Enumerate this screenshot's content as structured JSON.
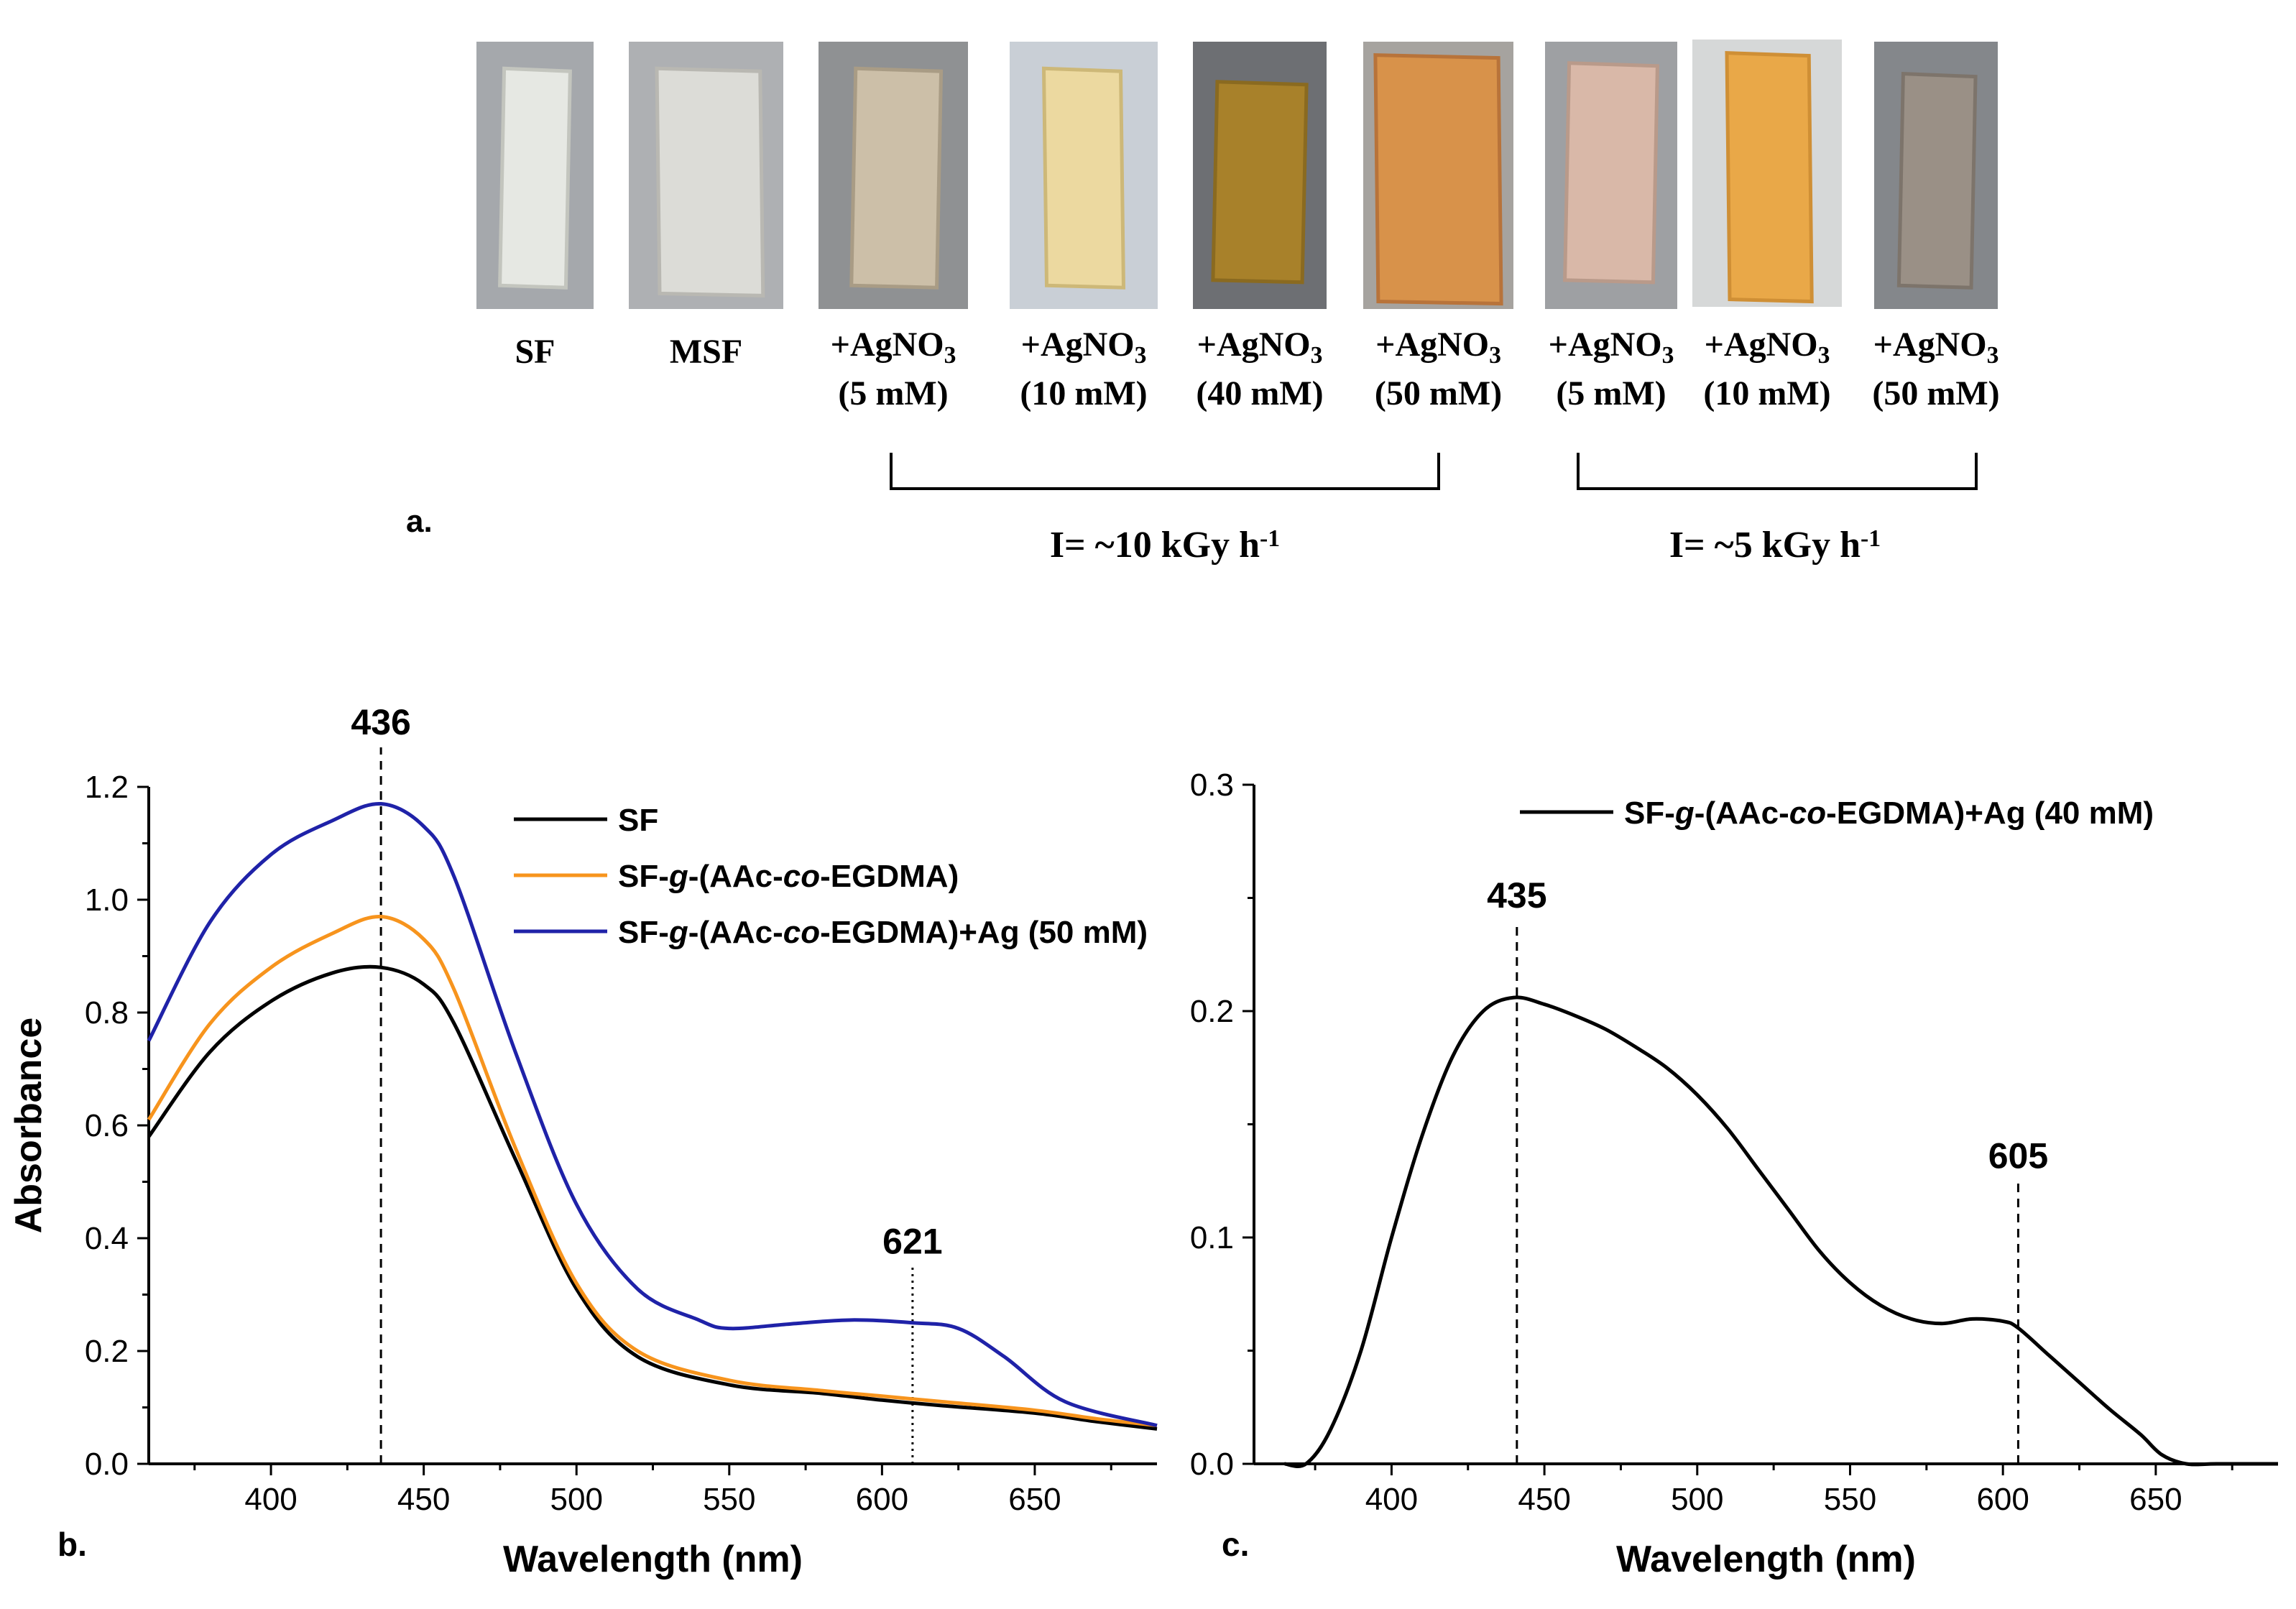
{
  "panel_a": {
    "label": "a.",
    "samples": [
      {
        "name": "SF",
        "color": "#e6e8e3",
        "edge": "#c3c5be",
        "bg": "#a5a8ac"
      },
      {
        "name": "MSF",
        "color": "#dcdcd7",
        "edge": "#b9b8b2",
        "bg": "#aeb0b3"
      },
      {
        "name": "+AgNO3",
        "conc": "(5 mM)",
        "color": "#ccbfa8",
        "edge": "#a99c85",
        "bg": "#8f9193"
      },
      {
        "name": "+AgNO3",
        "conc": "(10 mM)",
        "color": "#ecd9a0",
        "edge": "#cdb878",
        "bg": "#c9cfd6"
      },
      {
        "name": "+AgNO3",
        "conc": "(40 mM)",
        "color": "#a8812a",
        "edge": "#8a6a20",
        "bg": "#6d6f73"
      },
      {
        "name": "+AgNO3",
        "conc": "(50 mM)",
        "color": "#d8924a",
        "edge": "#b8733a",
        "bg": "#a6a39f"
      },
      {
        "name": "+AgNO3",
        "conc": "(5 mM)",
        "color": "#d9b8a8",
        "edge": "#b99a8a",
        "bg": "#9ea0a3"
      },
      {
        "name": "+AgNO3",
        "conc": "(10 mM)",
        "color": "#e9a848",
        "edge": "#cf8f35",
        "bg": "#d6d8d8"
      },
      {
        "name": "+AgNO3",
        "conc": "(50 mM)",
        "color": "#9a9086",
        "edge": "#7d746b",
        "bg": "#84878b"
      }
    ],
    "groups": [
      {
        "label": "I= ~10 kGy h-1"
      },
      {
        "label": "I= ~5 kGy h-1"
      }
    ]
  },
  "chart_data": [
    {
      "type": "line",
      "panel_label": "b.",
      "title": "",
      "xlabel": "Wavelength (nm)",
      "ylabel": "Absorbance",
      "xlim": [
        360,
        690
      ],
      "ylim": [
        0.0,
        1.2
      ],
      "xticks": [
        400,
        450,
        500,
        550,
        600,
        650
      ],
      "yticks": [
        0.0,
        0.2,
        0.4,
        0.6,
        0.8,
        1.0,
        1.2
      ],
      "xtick_labels": [
        "400",
        "450",
        "500",
        "550",
        "600",
        "650"
      ],
      "ytick_labels": [
        "0.0",
        "0.2",
        "0.4",
        "0.6",
        "0.8",
        "1.0",
        "1.2"
      ],
      "series": [
        {
          "name": "SF",
          "color": "#000000",
          "x": [
            360,
            380,
            400,
            420,
            436,
            450,
            460,
            480,
            500,
            520,
            550,
            580,
            600,
            620,
            650,
            670,
            690
          ],
          "y": [
            0.58,
            0.73,
            0.82,
            0.87,
            0.88,
            0.85,
            0.78,
            0.54,
            0.31,
            0.19,
            0.14,
            0.125,
            0.113,
            0.103,
            0.09,
            0.075,
            0.062
          ]
        },
        {
          "name": "SF-g-(AAc-co-EGDMA)",
          "color": "#f7941d",
          "x": [
            360,
            380,
            400,
            420,
            436,
            450,
            460,
            480,
            500,
            520,
            550,
            580,
            600,
            620,
            650,
            670,
            690
          ],
          "y": [
            0.61,
            0.78,
            0.88,
            0.94,
            0.97,
            0.93,
            0.84,
            0.56,
            0.32,
            0.2,
            0.148,
            0.13,
            0.12,
            0.11,
            0.095,
            0.08,
            0.068
          ]
        },
        {
          "name": "SF-g-(AAc-co-EGDMA)+Ag (50 mM)",
          "color": "#1f22a8",
          "x": [
            360,
            380,
            400,
            420,
            436,
            450,
            460,
            480,
            500,
            520,
            540,
            550,
            570,
            590,
            610,
            625,
            640,
            660,
            690
          ],
          "y": [
            0.75,
            0.96,
            1.08,
            1.14,
            1.17,
            1.13,
            1.04,
            0.73,
            0.46,
            0.31,
            0.255,
            0.24,
            0.248,
            0.255,
            0.25,
            0.24,
            0.19,
            0.11,
            0.068
          ]
        }
      ],
      "annotations": [
        {
          "text": "436",
          "x": 436,
          "style": "dashed",
          "y_top": 1.27
        },
        {
          "text": "621",
          "x": 610,
          "style": "dotted",
          "y_top": 0.35
        }
      ]
    },
    {
      "type": "line",
      "panel_label": "c.",
      "title": "",
      "xlabel": "Wavelength (nm)",
      "ylabel": "",
      "xlim": [
        355,
        690
      ],
      "ylim": [
        0.0,
        0.3
      ],
      "xticks": [
        400,
        450,
        500,
        550,
        600,
        650
      ],
      "yticks": [
        0.0,
        0.1,
        0.2,
        0.3
      ],
      "xtick_labels": [
        "400",
        "450",
        "500",
        "550",
        "600",
        "650"
      ],
      "ytick_labels": [
        "0.0",
        "0.1",
        "0.2",
        "0.3"
      ],
      "series": [
        {
          "name": "SF-g-(AAc-co-EGDMA)+Ag (40 mM)",
          "color": "#000000",
          "x": [
            365,
            372,
            380,
            390,
            400,
            410,
            420,
            430,
            440,
            450,
            460,
            470,
            480,
            490,
            500,
            510,
            520,
            530,
            540,
            550,
            560,
            570,
            580,
            590,
            600,
            605,
            615,
            625,
            635,
            645,
            652,
            660,
            670,
            690
          ],
          "y": [
            0.0,
            0.0,
            0.015,
            0.05,
            0.1,
            0.145,
            0.18,
            0.2,
            0.206,
            0.203,
            0.198,
            0.192,
            0.184,
            0.175,
            0.163,
            0.148,
            0.13,
            0.112,
            0.094,
            0.08,
            0.07,
            0.064,
            0.062,
            0.064,
            0.063,
            0.06,
            0.048,
            0.036,
            0.024,
            0.013,
            0.004,
            0.0,
            0.0,
            0.0
          ]
        }
      ],
      "annotations": [
        {
          "text": "435",
          "x": 441,
          "style": "dashed",
          "y_top": 0.24
        },
        {
          "text": "605",
          "x": 605,
          "style": "dashed",
          "y_top": 0.125
        }
      ]
    }
  ]
}
